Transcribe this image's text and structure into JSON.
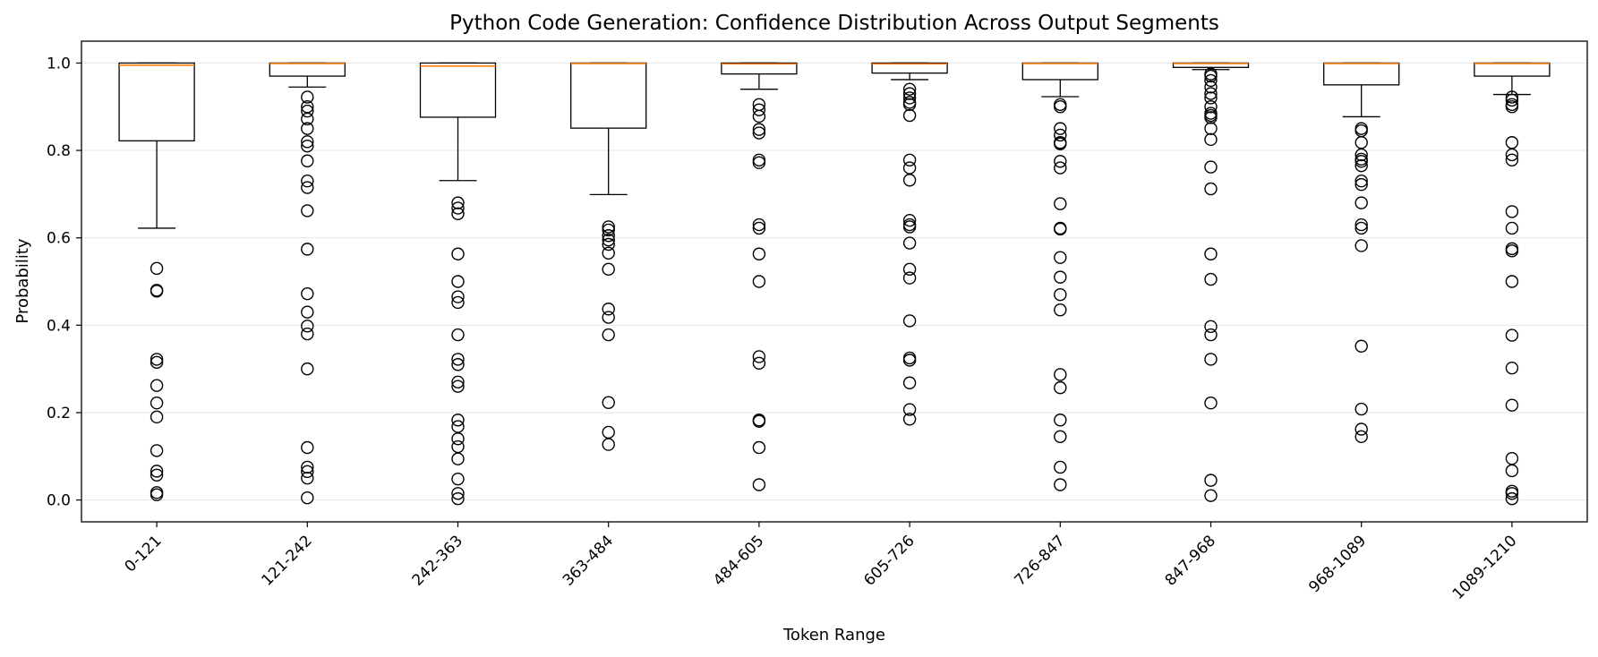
{
  "chart_data": {
    "type": "box",
    "title": "Python Code Generation: Confidence Distribution Across Output Segments",
    "xlabel": "Token Range",
    "ylabel": "Probability",
    "ylim": [
      -0.05,
      1.05
    ],
    "yticks": [
      "0.0",
      "0.2",
      "0.4",
      "0.6",
      "0.8",
      "1.0"
    ],
    "ytick_values": [
      0.0,
      0.2,
      0.4,
      0.6,
      0.8,
      1.0
    ],
    "grid": "horizontal",
    "colors": {
      "box": "#000000",
      "median": "#ff7f0e",
      "grid": "#e6e6e6"
    },
    "categories": [
      "0-121",
      "121-242",
      "242-363",
      "363-484",
      "484-605",
      "605-726",
      "726-847",
      "847-968",
      "968-1089",
      "1089-1210"
    ],
    "boxes": [
      {
        "q1": 0.822,
        "median": 0.995,
        "q3": 1.0,
        "whisker_low": 0.622,
        "whisker_high": 1.0,
        "outliers": [
          0.53,
          0.48,
          0.478,
          0.322,
          0.315,
          0.262,
          0.222,
          0.19,
          0.113,
          0.066,
          0.057,
          0.017,
          0.012
        ]
      },
      {
        "q1": 0.97,
        "median": 0.999,
        "q3": 1.0,
        "whisker_low": 0.945,
        "whisker_high": 1.0,
        "outliers": [
          0.922,
          0.9,
          0.89,
          0.872,
          0.85,
          0.82,
          0.81,
          0.776,
          0.73,
          0.715,
          0.662,
          0.574,
          0.472,
          0.43,
          0.398,
          0.38,
          0.3,
          0.12,
          0.075,
          0.065,
          0.05,
          0.005
        ]
      },
      {
        "q1": 0.876,
        "median": 0.993,
        "q3": 1.0,
        "whisker_low": 0.731,
        "whisker_high": 1.0,
        "outliers": [
          0.68,
          0.668,
          0.655,
          0.563,
          0.5,
          0.465,
          0.452,
          0.378,
          0.322,
          0.31,
          0.27,
          0.26,
          0.183,
          0.168,
          0.14,
          0.122,
          0.094,
          0.048,
          0.015,
          0.003
        ]
      },
      {
        "q1": 0.851,
        "median": 0.999,
        "q3": 1.0,
        "whisker_low": 0.699,
        "whisker_high": 1.0,
        "outliers": [
          0.625,
          0.618,
          0.605,
          0.595,
          0.585,
          0.565,
          0.528,
          0.437,
          0.418,
          0.378,
          0.223,
          0.155,
          0.127
        ]
      },
      {
        "q1": 0.975,
        "median": 0.998,
        "q3": 1.0,
        "whisker_low": 0.94,
        "whisker_high": 1.0,
        "outliers": [
          0.905,
          0.893,
          0.878,
          0.848,
          0.84,
          0.778,
          0.772,
          0.63,
          0.622,
          0.563,
          0.5,
          0.328,
          0.313,
          0.183,
          0.18,
          0.12,
          0.035
        ]
      },
      {
        "q1": 0.977,
        "median": 0.998,
        "q3": 1.0,
        "whisker_low": 0.962,
        "whisker_high": 1.0,
        "outliers": [
          0.94,
          0.93,
          0.92,
          0.91,
          0.905,
          0.88,
          0.778,
          0.76,
          0.732,
          0.64,
          0.63,
          0.625,
          0.588,
          0.528,
          0.508,
          0.41,
          0.325,
          0.32,
          0.268,
          0.207,
          0.185
        ]
      },
      {
        "q1": 0.962,
        "median": 0.999,
        "q3": 1.0,
        "whisker_low": 0.923,
        "whisker_high": 1.0,
        "outliers": [
          0.905,
          0.9,
          0.85,
          0.835,
          0.818,
          0.815,
          0.775,
          0.76,
          0.678,
          0.622,
          0.62,
          0.555,
          0.51,
          0.47,
          0.435,
          0.287,
          0.257,
          0.183,
          0.145,
          0.075,
          0.035
        ]
      },
      {
        "q1": 0.99,
        "median": 0.999,
        "q3": 1.0,
        "whisker_low": 0.985,
        "whisker_high": 1.0,
        "outliers": [
          0.975,
          0.97,
          0.96,
          0.945,
          0.93,
          0.92,
          0.9,
          0.885,
          0.88,
          0.875,
          0.85,
          0.825,
          0.762,
          0.712,
          0.563,
          0.505,
          0.397,
          0.378,
          0.322,
          0.222,
          0.045,
          0.01
        ]
      },
      {
        "q1": 0.95,
        "median": 0.999,
        "q3": 1.0,
        "whisker_low": 0.877,
        "whisker_high": 1.0,
        "outliers": [
          0.85,
          0.845,
          0.818,
          0.79,
          0.78,
          0.775,
          0.765,
          0.73,
          0.722,
          0.68,
          0.63,
          0.622,
          0.582,
          0.352,
          0.208,
          0.162,
          0.145
        ]
      },
      {
        "q1": 0.97,
        "median": 0.999,
        "q3": 1.0,
        "whisker_low": 0.928,
        "whisker_high": 1.0,
        "outliers": [
          0.922,
          0.915,
          0.905,
          0.9,
          0.818,
          0.79,
          0.778,
          0.66,
          0.622,
          0.575,
          0.57,
          0.5,
          0.377,
          0.302,
          0.217,
          0.095,
          0.067,
          0.02,
          0.015,
          0.003
        ]
      }
    ]
  }
}
